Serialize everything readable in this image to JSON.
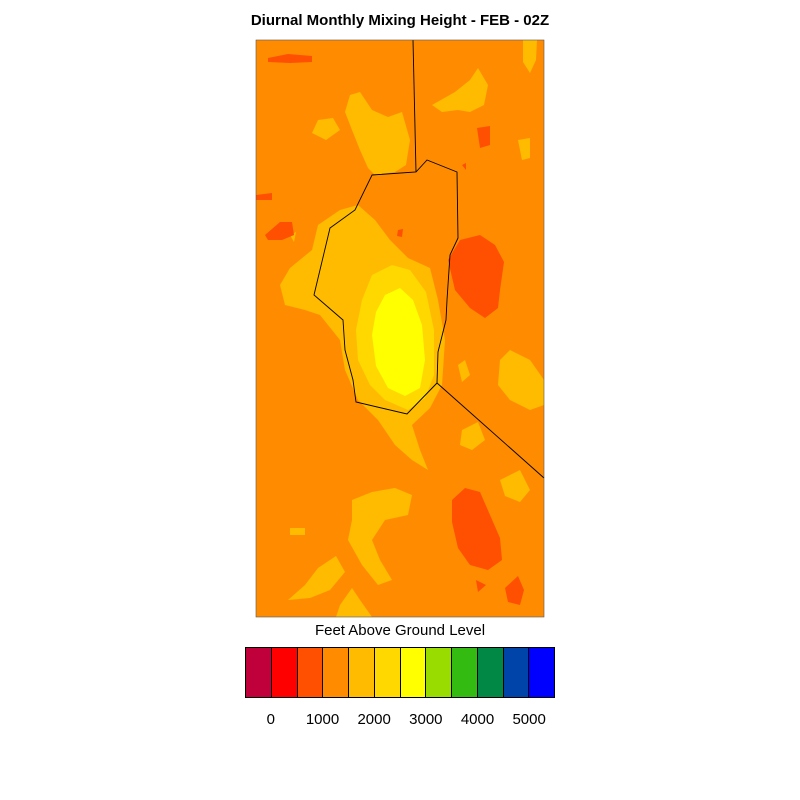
{
  "title": "Diurnal Monthly Mixing Height - FEB - 02Z",
  "colorbar": {
    "title": "Feet Above Ground Level",
    "colors": [
      "#c0003a",
      "#ff0000",
      "#ff4f00",
      "#ff8c00",
      "#ffbb00",
      "#ffd800",
      "#ffff00",
      "#99dd00",
      "#33bb11",
      "#008844",
      "#0044aa",
      "#0000ff"
    ],
    "ticks": [
      "0",
      "1000",
      "2000",
      "3000",
      "4000",
      "5000"
    ]
  },
  "map": {
    "background_color": "#ff8c00"
  }
}
